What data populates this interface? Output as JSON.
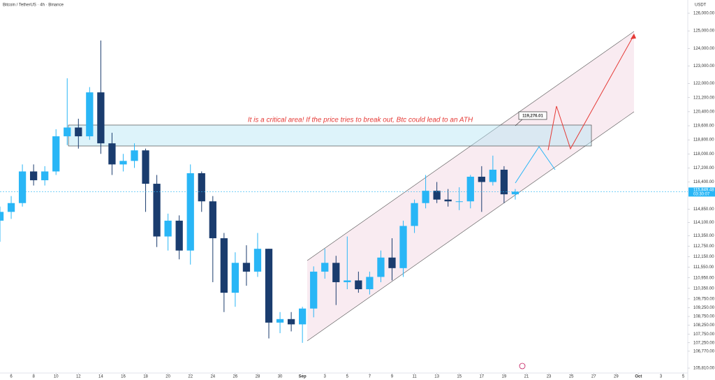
{
  "chart_data": {
    "type": "candlestick",
    "title": "Bitcoin / TetherUS · 4h · Binance",
    "y_axis_label": "USDT",
    "annotation": "It is a critical area! If the price tries to break out, Btc could lead to an ATH",
    "price_label": "119,276.01",
    "last_price": {
      "value": 115849.48,
      "label": "115,849.48"
    },
    "countdown": "03:30:07",
    "up_color": "#29b6f6",
    "down_color": "#1a3c6e",
    "x": [
      5,
      6,
      7,
      8,
      9,
      10,
      11,
      12,
      13,
      14,
      15,
      16,
      17,
      18,
      19,
      20,
      21,
      22,
      23,
      24,
      25,
      26,
      27,
      28,
      29,
      30,
      31,
      32,
      33,
      34,
      35,
      36,
      37,
      38,
      39,
      40,
      41,
      42,
      43,
      44,
      45,
      46,
      47,
      48,
      49,
      50,
      51
    ],
    "open": [
      114200,
      114700,
      115200,
      117000,
      116500,
      117000,
      119000,
      119500,
      119000,
      121500,
      118600,
      117400,
      117600,
      118200,
      116300,
      113300,
      114200,
      112500,
      116900,
      115300,
      113200,
      110100,
      111800,
      111300,
      112600,
      108400,
      108600,
      108300,
      109200,
      111300,
      111800,
      110700,
      110800,
      110300,
      111000,
      112100,
      111500,
      113900,
      115200,
      115900,
      115400,
      115300,
      115300,
      116700,
      116400,
      117100,
      115700
    ],
    "high": [
      115000,
      115600,
      117400,
      117400,
      117300,
      119400,
      122300,
      120000,
      121800,
      124450,
      119200,
      118000,
      118600,
      118300,
      116800,
      114600,
      114500,
      117400,
      117000,
      115600,
      113500,
      112400,
      112800,
      113500,
      112600,
      109000,
      109000,
      109300,
      111600,
      112600,
      112200,
      113300,
      111300,
      111300,
      112500,
      113200,
      114200,
      115400,
      116800,
      116400,
      116000,
      116100,
      116800,
      117300,
      117900,
      117300,
      116000
    ],
    "low": [
      113000,
      114300,
      115000,
      116200,
      116200,
      116800,
      118500,
      118300,
      118800,
      118000,
      116800,
      117000,
      117200,
      114700,
      112700,
      112500,
      112000,
      111700,
      114700,
      110700,
      109000,
      109300,
      110500,
      111000,
      107500,
      107800,
      107900,
      107250,
      108700,
      110900,
      109400,
      110300,
      110100,
      110000,
      110700,
      110800,
      111000,
      113500,
      114900,
      115200,
      115000,
      114800,
      114900,
      114700,
      116200,
      115200,
      115400
    ],
    "close": [
      114700,
      115200,
      117000,
      116500,
      117000,
      119000,
      119500,
      119000,
      121500,
      118600,
      117400,
      117600,
      118200,
      116300,
      113300,
      114200,
      112500,
      116900,
      115300,
      113200,
      110100,
      111800,
      111300,
      112600,
      108400,
      108600,
      108300,
      109200,
      111300,
      111800,
      110700,
      110800,
      110300,
      111000,
      112100,
      111500,
      113900,
      115200,
      115900,
      115400,
      115300,
      115300,
      116700,
      116400,
      117100,
      115700,
      115849.48
    ],
    "xlim": [
      5,
      66.4
    ],
    "xticks": [
      6,
      8,
      10,
      12,
      14,
      16,
      18,
      20,
      22,
      24,
      26,
      28,
      30,
      {
        "value": 32,
        "label": "Sep"
      },
      {
        "value": 34,
        "label": "3"
      },
      {
        "value": 36,
        "label": "5"
      },
      {
        "value": 38,
        "label": "7"
      },
      {
        "value": 40,
        "label": "9"
      },
      {
        "value": 42,
        "label": "11"
      },
      {
        "value": 44,
        "label": "13"
      },
      {
        "value": 46,
        "label": "15"
      },
      {
        "value": 48,
        "label": "17"
      },
      {
        "value": 50,
        "label": "19"
      },
      {
        "value": 52,
        "label": "21"
      },
      {
        "value": 54,
        "label": "23"
      },
      {
        "value": 56,
        "label": "25"
      },
      {
        "value": 58,
        "label": "27"
      },
      {
        "value": 60,
        "label": "29"
      },
      {
        "value": 62,
        "label": "Oct"
      },
      {
        "value": 64,
        "label": "3"
      },
      {
        "value": 66,
        "label": "5"
      }
    ],
    "ylim": [
      105532,
      126755
    ],
    "yticks": [
      {
        "value": 126000,
        "label": "126,000.00"
      },
      {
        "value": 125000,
        "label": "125,000.00"
      },
      {
        "value": 124000,
        "label": "124,000.00"
      },
      {
        "value": 123000,
        "label": "123,000.00"
      },
      {
        "value": 122000,
        "label": "122,000.00"
      },
      {
        "value": 121200,
        "label": "121,200.00"
      },
      {
        "value": 120400,
        "label": "120,400.00"
      },
      {
        "value": 119600,
        "label": "119,600.00"
      },
      {
        "value": 118800,
        "label": "118,800.00"
      },
      {
        "value": 118000,
        "label": "118,000.00"
      },
      {
        "value": 117200,
        "label": "117,200.00"
      },
      {
        "value": 116400,
        "label": "116,400.00"
      },
      {
        "value": 114850,
        "label": "114,850.00"
      },
      {
        "value": 114100,
        "label": "114,100.00"
      },
      {
        "value": 113350,
        "label": "113,350.00"
      },
      {
        "value": 112750,
        "label": "112,750.00"
      },
      {
        "value": 112150,
        "label": "112,150.00"
      },
      {
        "value": 111550,
        "label": "111,550.00"
      },
      {
        "value": 110950,
        "label": "110,950.00"
      },
      {
        "value": 110350,
        "label": "110,350.00"
      },
      {
        "value": 109750,
        "label": "109,750.00"
      },
      {
        "value": 109250,
        "label": "109,250.00"
      },
      {
        "value": 108750,
        "label": "108,750.00"
      },
      {
        "value": 108250,
        "label": "108,250.00"
      },
      {
        "value": 107750,
        "label": "107,750.00"
      },
      {
        "value": 107250,
        "label": "107,250.00"
      },
      {
        "value": 106770,
        "label": "106,770.00"
      },
      {
        "value": 105810,
        "label": "105,810.00"
      }
    ]
  }
}
